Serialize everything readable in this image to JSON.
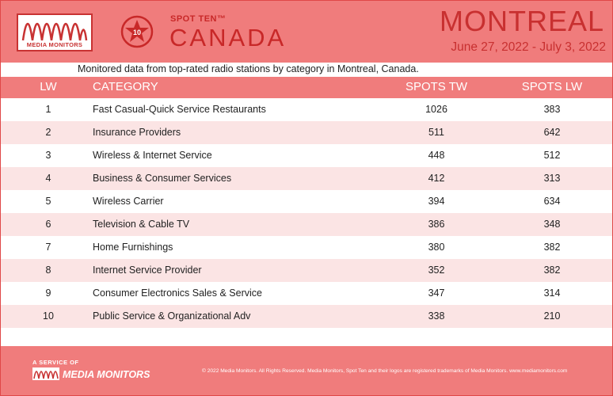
{
  "header": {
    "logo_text": "MEDIA MONITORS",
    "badge_number": "10",
    "brand_top": "SPOT TEN™",
    "country": "CANADA",
    "city": "MONTREAL",
    "dates": "June 27, 2022 - July 3, 2022",
    "colors": {
      "background": "#f07c7c",
      "accent": "#c83232"
    }
  },
  "subtitle": "Monitored data from top-rated radio stations by category in Montreal, Canada.",
  "table": {
    "headers": {
      "lw": "LW",
      "category": "CATEGORY",
      "spots_tw": "SPOTS TW",
      "spots_lw": "SPOTS LW"
    },
    "rows": [
      {
        "lw": "1",
        "category": "Fast Casual-Quick Service Restaurants",
        "spots_tw": "1026",
        "spots_lw": "383"
      },
      {
        "lw": "2",
        "category": "Insurance Providers",
        "spots_tw": "511",
        "spots_lw": "642"
      },
      {
        "lw": "3",
        "category": "Wireless & Internet Service",
        "spots_tw": "448",
        "spots_lw": "512"
      },
      {
        "lw": "4",
        "category": "Business & Consumer Services",
        "spots_tw": "412",
        "spots_lw": "313"
      },
      {
        "lw": "5",
        "category": "Wireless Carrier",
        "spots_tw": "394",
        "spots_lw": "634"
      },
      {
        "lw": "6",
        "category": "Television & Cable TV",
        "spots_tw": "386",
        "spots_lw": "348"
      },
      {
        "lw": "7",
        "category": "Home Furnishings",
        "spots_tw": "380",
        "spots_lw": "382"
      },
      {
        "lw": "8",
        "category": "Internet Service Provider",
        "spots_tw": "352",
        "spots_lw": "382"
      },
      {
        "lw": "9",
        "category": "Consumer Electronics Sales & Service",
        "spots_tw": "347",
        "spots_lw": "314"
      },
      {
        "lw": "10",
        "category": "Public Service & Organizational Adv",
        "spots_tw": "338",
        "spots_lw": "210"
      }
    ]
  },
  "footer": {
    "service_label": "A SERVICE OF",
    "brand": "MEDIA MONITORS",
    "copyright": "© 2022 Media Monitors. All Rights Reserved. Media Monitors, Spot Ten and their logos are registered trademarks of Media Monitors. www.mediamonitors.com"
  }
}
